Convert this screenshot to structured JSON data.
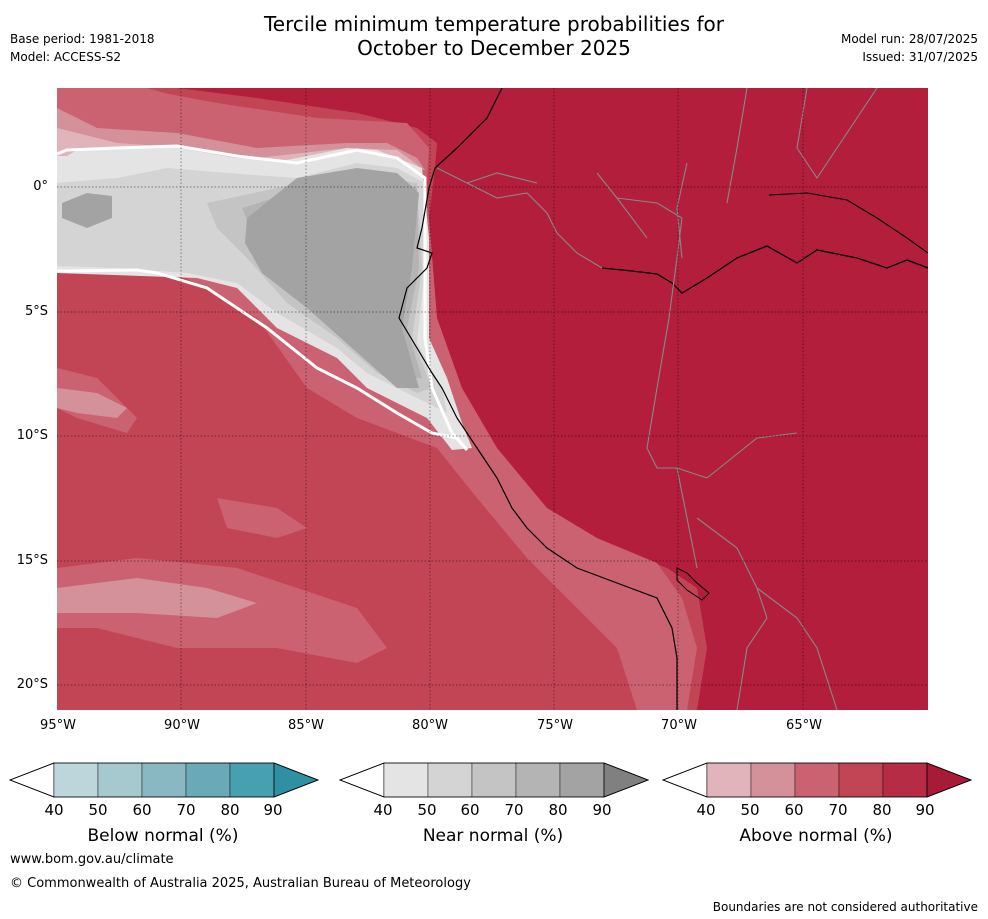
{
  "header": {
    "title_line1": "Tercile minimum temperature probabilities for",
    "title_line2": "October to December 2025",
    "base_period": "Base period: 1981-2018",
    "model": "Model: ACCESS-S2",
    "model_run": "Model run: 28/07/2025",
    "issued": "Issued: 31/07/2025"
  },
  "map": {
    "lat_ticks": [
      "0°",
      "5°S",
      "10°S",
      "15°S",
      "20°S"
    ],
    "lon_ticks": [
      "95°W",
      "90°W",
      "85°W",
      "80°W",
      "75°W",
      "70°W",
      "65°W"
    ],
    "colors": {
      "above_90": "#b21e3b",
      "above_80": "#c24556",
      "above_70": "#cb6272",
      "above_60": "#d5919a",
      "above_50": "#e0b4ba",
      "near_50": "#e4e4e4",
      "near_60": "#d4d4d4",
      "near_70": "#c4c4c4",
      "near_80": "#b4b4b4",
      "near_90": "#a3a3a3"
    }
  },
  "colorbars": [
    {
      "id": "below",
      "title": "Below normal (%)",
      "labels": [
        "40",
        "50",
        "60",
        "70",
        "80",
        "90"
      ],
      "colors": [
        "#bdd6dc",
        "#a6c8cf",
        "#89b7c2",
        "#6aa9b6",
        "#47a0b0",
        "#2f8fa3"
      ]
    },
    {
      "id": "near",
      "title": "Near normal (%)",
      "labels": [
        "40",
        "50",
        "60",
        "70",
        "80",
        "90"
      ],
      "colors": [
        "#e4e4e4",
        "#d4d4d4",
        "#c4c4c4",
        "#b4b4b4",
        "#a3a3a3",
        "#808080"
      ]
    },
    {
      "id": "above",
      "title": "Above normal (%)",
      "labels": [
        "40",
        "50",
        "60",
        "70",
        "80",
        "90"
      ],
      "colors": [
        "#e0b4ba",
        "#d5919a",
        "#cb6272",
        "#c24556",
        "#b72c45",
        "#a71a38"
      ]
    }
  ],
  "footer": {
    "url": "www.bom.gov.au/climate",
    "copyright": "© Commonwealth of Australia 2025, Australian Bureau of Meteorology",
    "disclaimer": "Boundaries are not considered authoritative"
  }
}
